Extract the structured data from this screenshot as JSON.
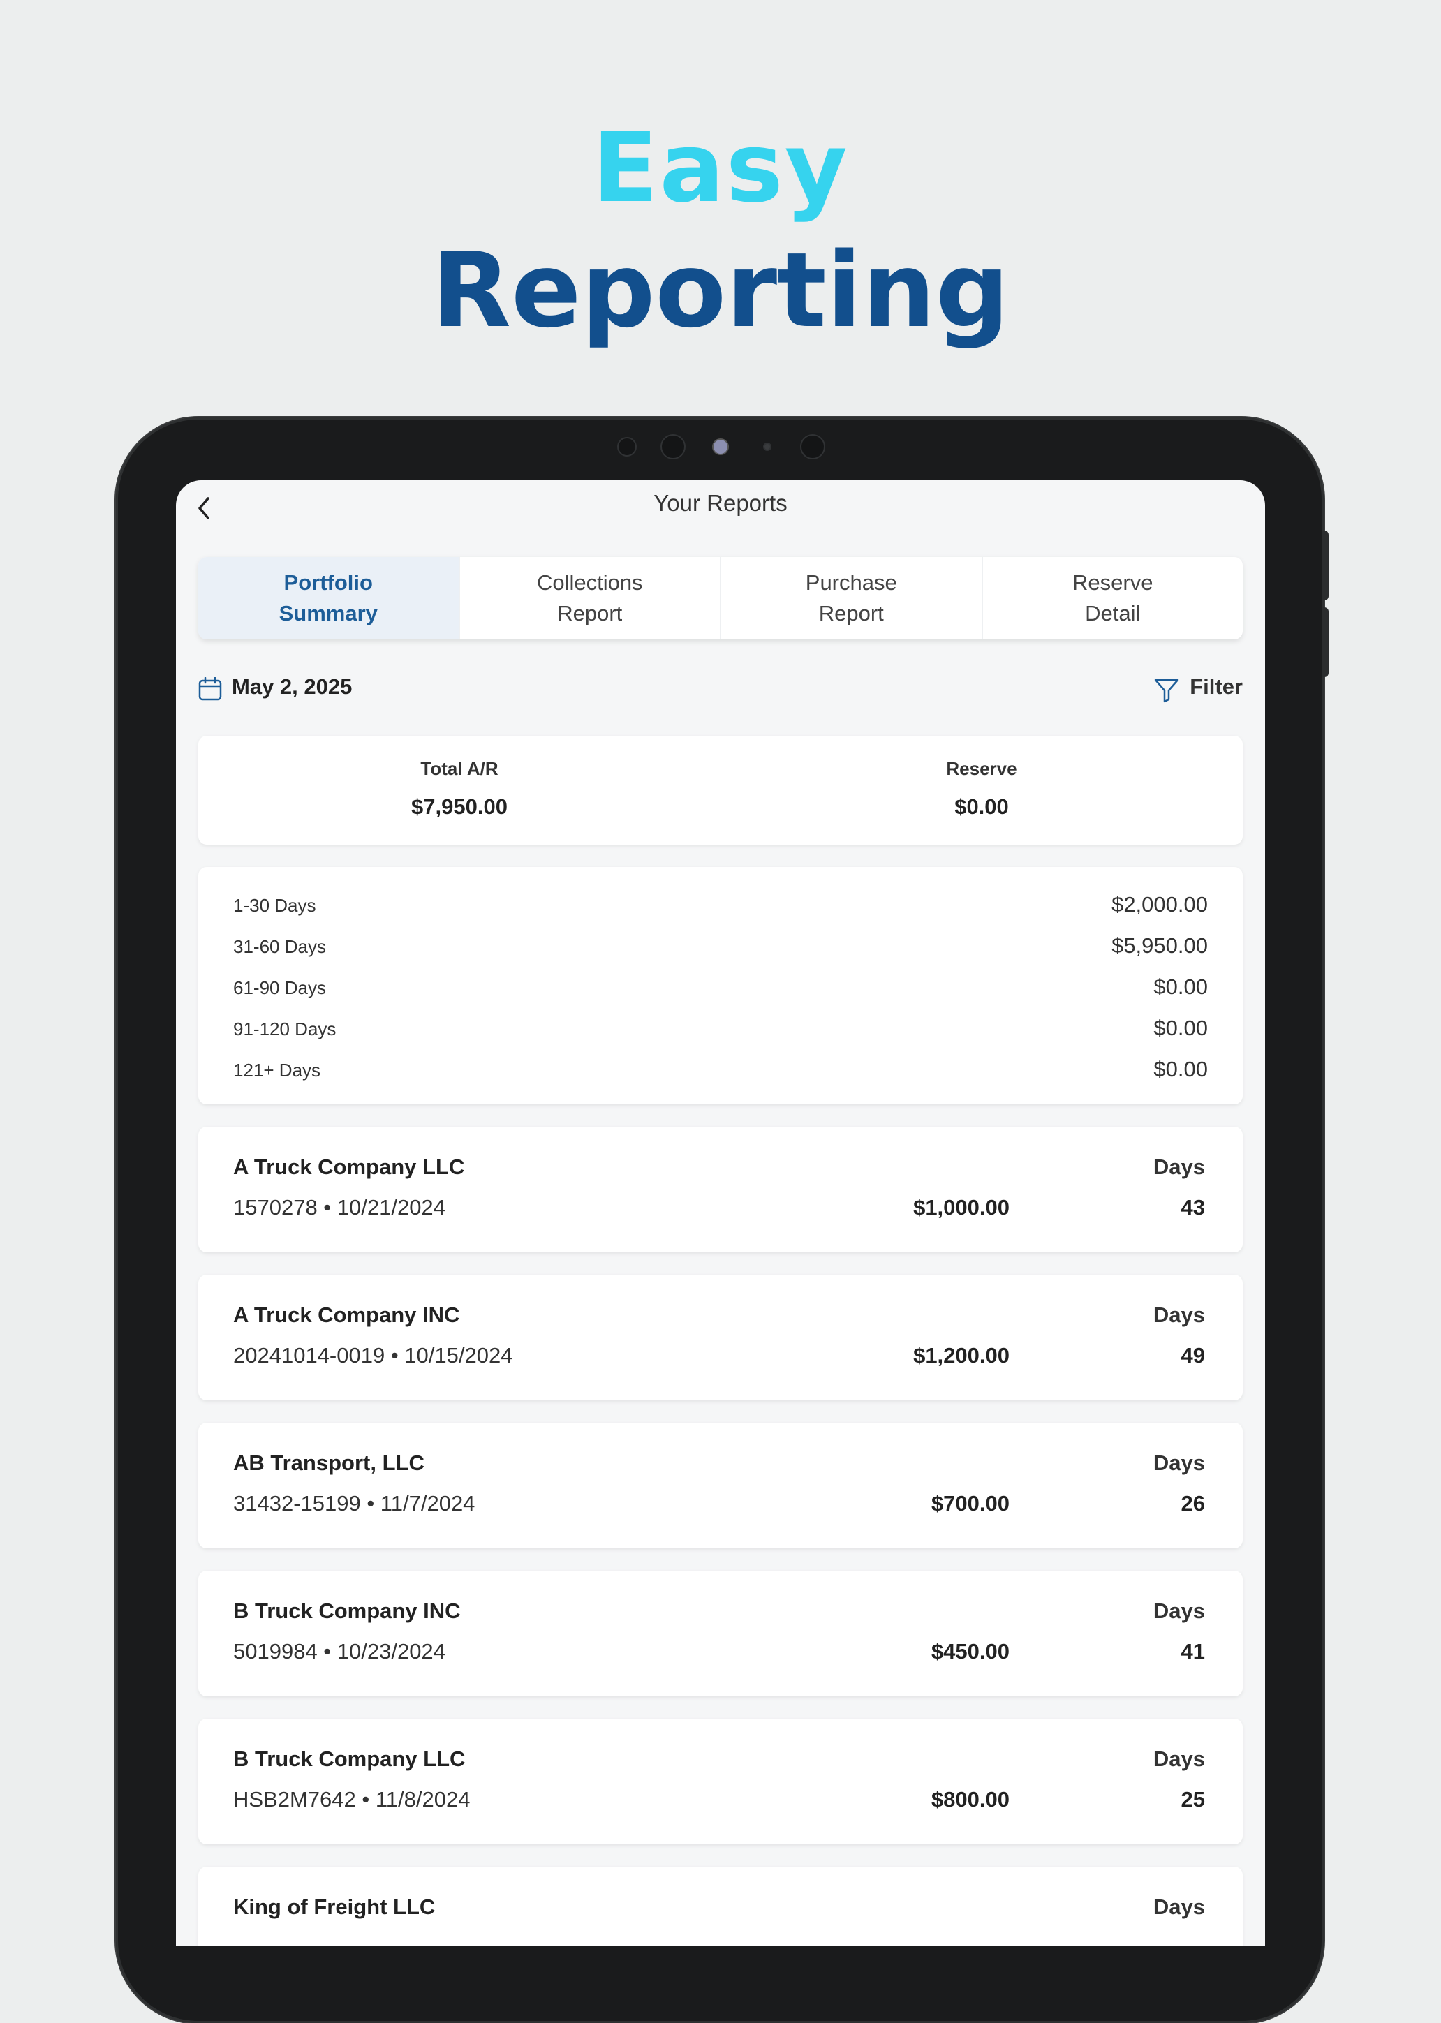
{
  "headline": {
    "line1": "Easy",
    "line2": "Reporting",
    "line1_color": "#36d3ee",
    "line2_color": "#124f8d"
  },
  "nav": {
    "title": "Your Reports",
    "back_icon": "chevron-left-icon"
  },
  "tabs": [
    {
      "label": "Portfolio\nSummary",
      "active": true
    },
    {
      "label": "Collections\nReport",
      "active": false
    },
    {
      "label": "Purchase\nReport",
      "active": false
    },
    {
      "label": "Reserve\nDetail",
      "active": false
    }
  ],
  "date_bar": {
    "date": "May 2, 2025",
    "date_icon": "calendar-icon",
    "filter_label": "Filter",
    "filter_icon": "filter-icon"
  },
  "summary": {
    "total_ar_label": "Total A/R",
    "total_ar_value": "$7,950.00",
    "reserve_label": "Reserve",
    "reserve_value": "$0.00"
  },
  "aging": [
    {
      "label": "1-30 Days",
      "value": "$2,000.00"
    },
    {
      "label": "31-60 Days",
      "value": "$5,950.00"
    },
    {
      "label": "61-90 Days",
      "value": "$0.00"
    },
    {
      "label": "91-120 Days",
      "value": "$0.00"
    },
    {
      "label": "121+ Days",
      "value": "$0.00"
    }
  ],
  "entries": [
    {
      "name": "A Truck Company LLC",
      "ref": "1570278 • 10/21/2024",
      "amount": "$1,000.00",
      "days_label": "Days",
      "days": "43"
    },
    {
      "name": "A Truck Company INC",
      "ref": "20241014-0019 • 10/15/2024",
      "amount": "$1,200.00",
      "days_label": "Days",
      "days": "49"
    },
    {
      "name": "AB Transport, LLC",
      "ref": "31432-15199 • 11/7/2024",
      "amount": "$700.00",
      "days_label": "Days",
      "days": "26"
    },
    {
      "name": "B Truck Company INC",
      "ref": "5019984 • 10/23/2024",
      "amount": "$450.00",
      "days_label": "Days",
      "days": "41"
    },
    {
      "name": "B Truck Company LLC",
      "ref": "HSB2M7642 • 11/8/2024",
      "amount": "$800.00",
      "days_label": "Days",
      "days": "25"
    },
    {
      "name": "King of Freight LLC",
      "ref": "",
      "amount": "",
      "days_label": "Days",
      "days": ""
    }
  ]
}
